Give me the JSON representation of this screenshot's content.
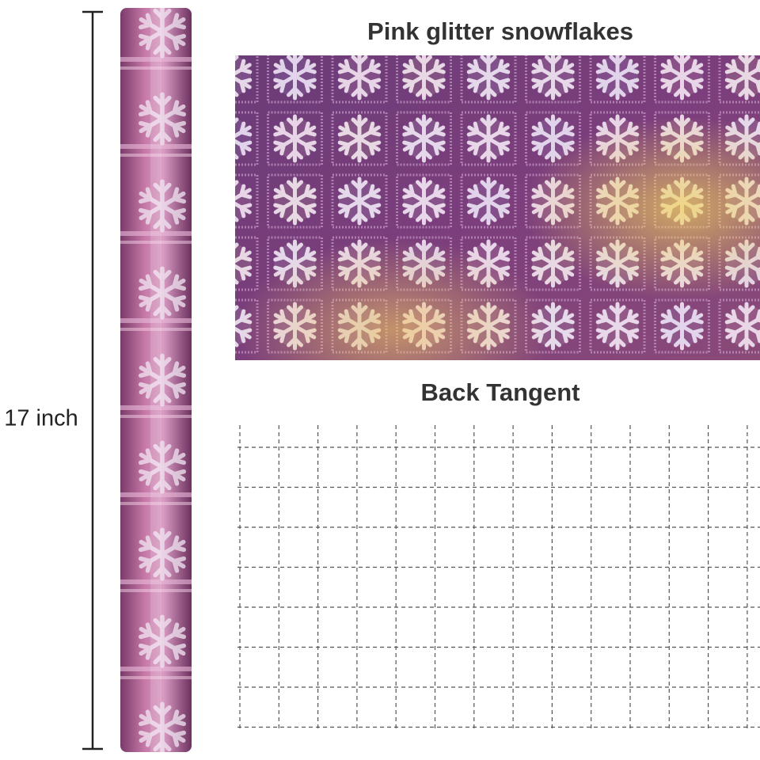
{
  "dimension": {
    "label": "17 inch"
  },
  "front": {
    "title": "Pink glitter snowflakes"
  },
  "back": {
    "title": "Back Tangent"
  }
}
